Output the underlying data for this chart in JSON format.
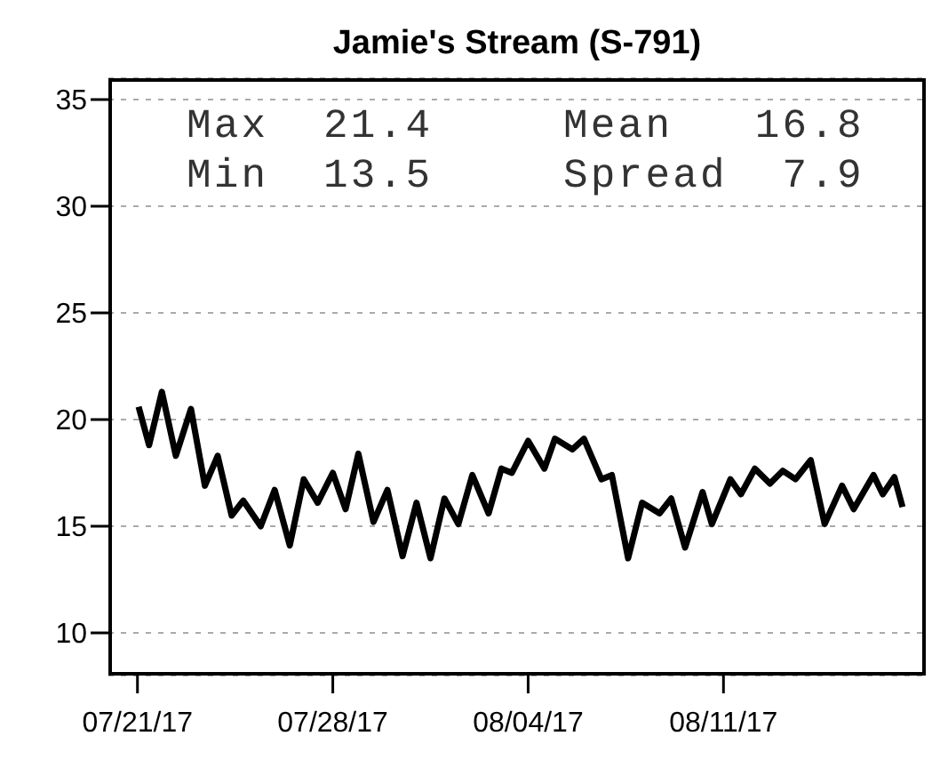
{
  "chart_data": {
    "type": "line",
    "title": "Jamie's Stream (S-791)",
    "x": [
      "--07-21T01:00",
      "--07-21T10:00",
      "--07-21T21:00",
      "--07-22T09:00",
      "--07-22T22:00",
      "--07-23T10:00",
      "--07-23T21:00",
      "--07-24T09:00",
      "--07-24T19:00",
      "--07-25T10:00",
      "--07-25T22:00",
      "--07-26T11:00",
      "--07-26T23:00",
      "--07-27T11:00",
      "--07-28T00:00",
      "--07-28T11:00",
      "--07-28T22:00",
      "--07-29T11:00",
      "--07-29T23:00",
      "--07-30T12:00",
      "--07-31T00:00",
      "--07-31T12:00",
      "--08-01T00:00",
      "--08-01T12:00",
      "--08-02T00:00",
      "--08-02T14:00",
      "--08-03T01:00",
      "--08-03T10:00",
      "--08-04T00:00",
      "--08-04T14:00",
      "--08-04T23:00",
      "--08-05T14:00",
      "--08-06T00:00",
      "--08-06T15:00",
      "--08-07T00:00",
      "--08-07T14:00",
      "--08-08T02:00",
      "--08-08T17:00",
      "--08-09T03:00",
      "--08-09T15:00",
      "--08-10T06:00",
      "--08-10T14:00",
      "--08-11T06:00",
      "--08-11T15:00",
      "--08-12T03:00",
      "--08-12T16:00",
      "--08-13T03:00",
      "--08-13T14:00",
      "--08-14T03:00",
      "--08-14T15:00",
      "--08-15T06:00",
      "--08-15T16:00",
      "--08-16T09:00",
      "--08-16T17:00",
      "--08-17T03:00",
      "--08-17T10:00"
    ],
    "series": [
      {
        "color": "#000000",
        "values": [
          20.6,
          18.8,
          21.3,
          18.3,
          20.5,
          16.9,
          18.3,
          15.5,
          16.2,
          15.0,
          16.7,
          14.1,
          17.2,
          16.1,
          17.5,
          15.8,
          18.4,
          15.2,
          16.7,
          13.6,
          16.1,
          13.5,
          16.3,
          15.1,
          17.4,
          15.6,
          17.7,
          17.5,
          19.0,
          17.7,
          19.1,
          18.6,
          19.1,
          17.2,
          17.4,
          13.5,
          16.1,
          15.6,
          16.3,
          14.0,
          16.6,
          15.1,
          17.2,
          16.5,
          17.7,
          17.0,
          17.6,
          17.2,
          18.1,
          15.1,
          16.9,
          15.8,
          17.4,
          16.5,
          17.3,
          15.9
        ]
      }
    ],
    "xlim": [
      "--07-19T23:00",
      "--08-18T06:00"
    ],
    "xticks": [
      {
        "value": "--07-21",
        "label": "07/21/17"
      },
      {
        "value": "--07-28",
        "label": "07/28/17"
      },
      {
        "value": "--08-04",
        "label": "08/04/17"
      },
      {
        "value": "--08-11",
        "label": "08/11/17"
      }
    ],
    "ylim": [
      8,
      36
    ],
    "yticks": [
      10,
      15,
      20,
      25,
      30,
      35
    ],
    "grid": "y",
    "marker": "none",
    "line_style": "solid",
    "annotations": [
      "Max  21.4",
      "Mean   16.8",
      "Min  13.5",
      "Spread  7.9"
    ]
  }
}
